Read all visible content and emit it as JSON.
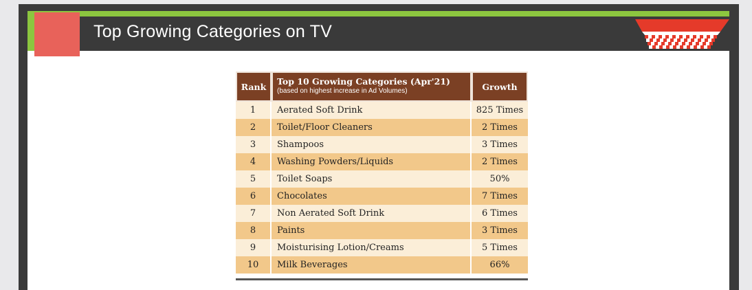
{
  "slide": {
    "title": "Top Growing Categories on TV"
  },
  "table": {
    "headers": {
      "rank": "Rank",
      "category_title": "Top 10 Growing Categories (Apr'21)",
      "category_subtitle": "(based on highest increase in Ad Volumes)",
      "growth": "Growth"
    },
    "rows": [
      {
        "rank": "1",
        "category": "Aerated Soft Drink",
        "growth": "825 Times"
      },
      {
        "rank": "2",
        "category": "Toilet/Floor Cleaners",
        "growth": "2 Times"
      },
      {
        "rank": "3",
        "category": "Shampoos",
        "growth": "3 Times"
      },
      {
        "rank": "4",
        "category": "Washing Powders/Liquids",
        "growth": "2 Times"
      },
      {
        "rank": "5",
        "category": "Toilet Soaps",
        "growth": "50%"
      },
      {
        "rank": "6",
        "category": "Chocolates",
        "growth": "7 Times"
      },
      {
        "rank": "7",
        "category": "Non Aerated Soft Drink",
        "growth": "6 Times"
      },
      {
        "rank": "8",
        "category": "Paints",
        "growth": "3 Times"
      },
      {
        "rank": "9",
        "category": "Moisturising Lotion/Creams",
        "growth": "5 Times"
      },
      {
        "rank": "10",
        "category": "Milk Beverages",
        "growth": "66%"
      }
    ]
  },
  "colors": {
    "header_band": "#3a3a3a",
    "accent_green": "#8cc63f",
    "accent_red": "#e8625a",
    "table_header": "#7b4024",
    "row_light": "#fbeed8",
    "row_dark": "#f2c88a"
  }
}
